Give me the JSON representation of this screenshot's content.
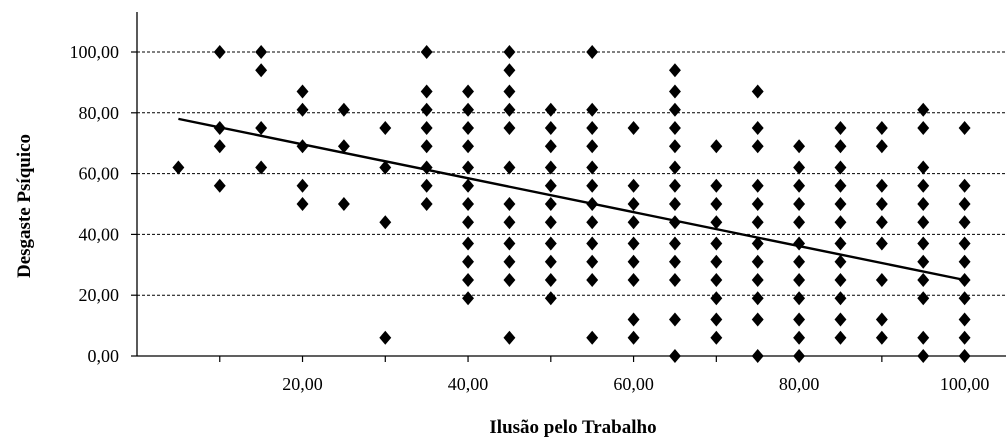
{
  "chart_data": {
    "type": "scatter",
    "title": "",
    "xlabel": "Ilusão pelo Trabalho",
    "ylabel": "Desgaste Psíquico",
    "xlim": [
      0,
      105
    ],
    "ylim": [
      0,
      100
    ],
    "x_ticks": [
      20,
      40,
      60,
      80,
      100
    ],
    "x_tick_labels": [
      "20,00",
      "40,00",
      "60,00",
      "80,00",
      "100,00"
    ],
    "y_ticks": [
      0,
      20,
      40,
      60,
      80,
      100
    ],
    "y_tick_labels": [
      "0,00",
      "20,00",
      "40,00",
      "60,00",
      "80,00",
      "100,00"
    ],
    "grid": "horizontal dashed",
    "marker": "diamond",
    "colors": {
      "marker": "#000000",
      "grid": "#000000",
      "trendline": "#000000"
    },
    "trendline": {
      "x": [
        5,
        100
      ],
      "y": [
        78,
        25
      ]
    },
    "points": [
      [
        5,
        62
      ],
      [
        10,
        100
      ],
      [
        10,
        75
      ],
      [
        10,
        69
      ],
      [
        10,
        56
      ],
      [
        15,
        100
      ],
      [
        15,
        94
      ],
      [
        15,
        75
      ],
      [
        15,
        62
      ],
      [
        20,
        87
      ],
      [
        20,
        81
      ],
      [
        20,
        69
      ],
      [
        20,
        56
      ],
      [
        20,
        50
      ],
      [
        25,
        81
      ],
      [
        25,
        69
      ],
      [
        25,
        50
      ],
      [
        30,
        75
      ],
      [
        30,
        62
      ],
      [
        30,
        44
      ],
      [
        30,
        6
      ],
      [
        35,
        100
      ],
      [
        35,
        87
      ],
      [
        35,
        81
      ],
      [
        35,
        75
      ],
      [
        35,
        69
      ],
      [
        35,
        62
      ],
      [
        35,
        56
      ],
      [
        35,
        50
      ],
      [
        40,
        87
      ],
      [
        40,
        81
      ],
      [
        40,
        75
      ],
      [
        40,
        69
      ],
      [
        40,
        62
      ],
      [
        40,
        56
      ],
      [
        40,
        50
      ],
      [
        40,
        44
      ],
      [
        40,
        37
      ],
      [
        40,
        31
      ],
      [
        40,
        25
      ],
      [
        40,
        19
      ],
      [
        45,
        100
      ],
      [
        45,
        94
      ],
      [
        45,
        87
      ],
      [
        45,
        81
      ],
      [
        45,
        75
      ],
      [
        45,
        62
      ],
      [
        45,
        50
      ],
      [
        45,
        44
      ],
      [
        45,
        37
      ],
      [
        45,
        31
      ],
      [
        45,
        25
      ],
      [
        45,
        6
      ],
      [
        50,
        81
      ],
      [
        50,
        75
      ],
      [
        50,
        69
      ],
      [
        50,
        62
      ],
      [
        50,
        56
      ],
      [
        50,
        50
      ],
      [
        50,
        44
      ],
      [
        50,
        37
      ],
      [
        50,
        31
      ],
      [
        50,
        25
      ],
      [
        50,
        19
      ],
      [
        55,
        100
      ],
      [
        55,
        81
      ],
      [
        55,
        75
      ],
      [
        55,
        69
      ],
      [
        55,
        62
      ],
      [
        55,
        56
      ],
      [
        55,
        50
      ],
      [
        55,
        44
      ],
      [
        55,
        37
      ],
      [
        55,
        31
      ],
      [
        55,
        25
      ],
      [
        55,
        6
      ],
      [
        60,
        75
      ],
      [
        60,
        56
      ],
      [
        60,
        50
      ],
      [
        60,
        44
      ],
      [
        60,
        37
      ],
      [
        60,
        31
      ],
      [
        60,
        25
      ],
      [
        60,
        12
      ],
      [
        60,
        6
      ],
      [
        65,
        94
      ],
      [
        65,
        87
      ],
      [
        65,
        81
      ],
      [
        65,
        75
      ],
      [
        65,
        69
      ],
      [
        65,
        62
      ],
      [
        65,
        56
      ],
      [
        65,
        50
      ],
      [
        65,
        44
      ],
      [
        65,
        37
      ],
      [
        65,
        31
      ],
      [
        65,
        25
      ],
      [
        65,
        12
      ],
      [
        65,
        0
      ],
      [
        70,
        69
      ],
      [
        70,
        56
      ],
      [
        70,
        50
      ],
      [
        70,
        44
      ],
      [
        70,
        37
      ],
      [
        70,
        31
      ],
      [
        70,
        25
      ],
      [
        70,
        19
      ],
      [
        70,
        12
      ],
      [
        70,
        6
      ],
      [
        75,
        87
      ],
      [
        75,
        75
      ],
      [
        75,
        69
      ],
      [
        75,
        56
      ],
      [
        75,
        50
      ],
      [
        75,
        44
      ],
      [
        75,
        37
      ],
      [
        75,
        31
      ],
      [
        75,
        25
      ],
      [
        75,
        19
      ],
      [
        75,
        12
      ],
      [
        75,
        0
      ],
      [
        80,
        69
      ],
      [
        80,
        62
      ],
      [
        80,
        56
      ],
      [
        80,
        50
      ],
      [
        80,
        44
      ],
      [
        80,
        37
      ],
      [
        80,
        31
      ],
      [
        80,
        25
      ],
      [
        80,
        19
      ],
      [
        80,
        12
      ],
      [
        80,
        6
      ],
      [
        80,
        0
      ],
      [
        85,
        75
      ],
      [
        85,
        69
      ],
      [
        85,
        62
      ],
      [
        85,
        56
      ],
      [
        85,
        50
      ],
      [
        85,
        44
      ],
      [
        85,
        37
      ],
      [
        85,
        31
      ],
      [
        85,
        25
      ],
      [
        85,
        19
      ],
      [
        85,
        12
      ],
      [
        85,
        6
      ],
      [
        90,
        75
      ],
      [
        90,
        69
      ],
      [
        90,
        56
      ],
      [
        90,
        50
      ],
      [
        90,
        44
      ],
      [
        90,
        37
      ],
      [
        90,
        25
      ],
      [
        90,
        12
      ],
      [
        90,
        6
      ],
      [
        95,
        81
      ],
      [
        95,
        75
      ],
      [
        95,
        62
      ],
      [
        95,
        56
      ],
      [
        95,
        50
      ],
      [
        95,
        44
      ],
      [
        95,
        37
      ],
      [
        95,
        31
      ],
      [
        95,
        25
      ],
      [
        95,
        19
      ],
      [
        95,
        6
      ],
      [
        95,
        0
      ],
      [
        100,
        75
      ],
      [
        100,
        56
      ],
      [
        100,
        50
      ],
      [
        100,
        44
      ],
      [
        100,
        37
      ],
      [
        100,
        31
      ],
      [
        100,
        25
      ],
      [
        100,
        19
      ],
      [
        100,
        12
      ],
      [
        100,
        6
      ],
      [
        100,
        0
      ]
    ]
  }
}
